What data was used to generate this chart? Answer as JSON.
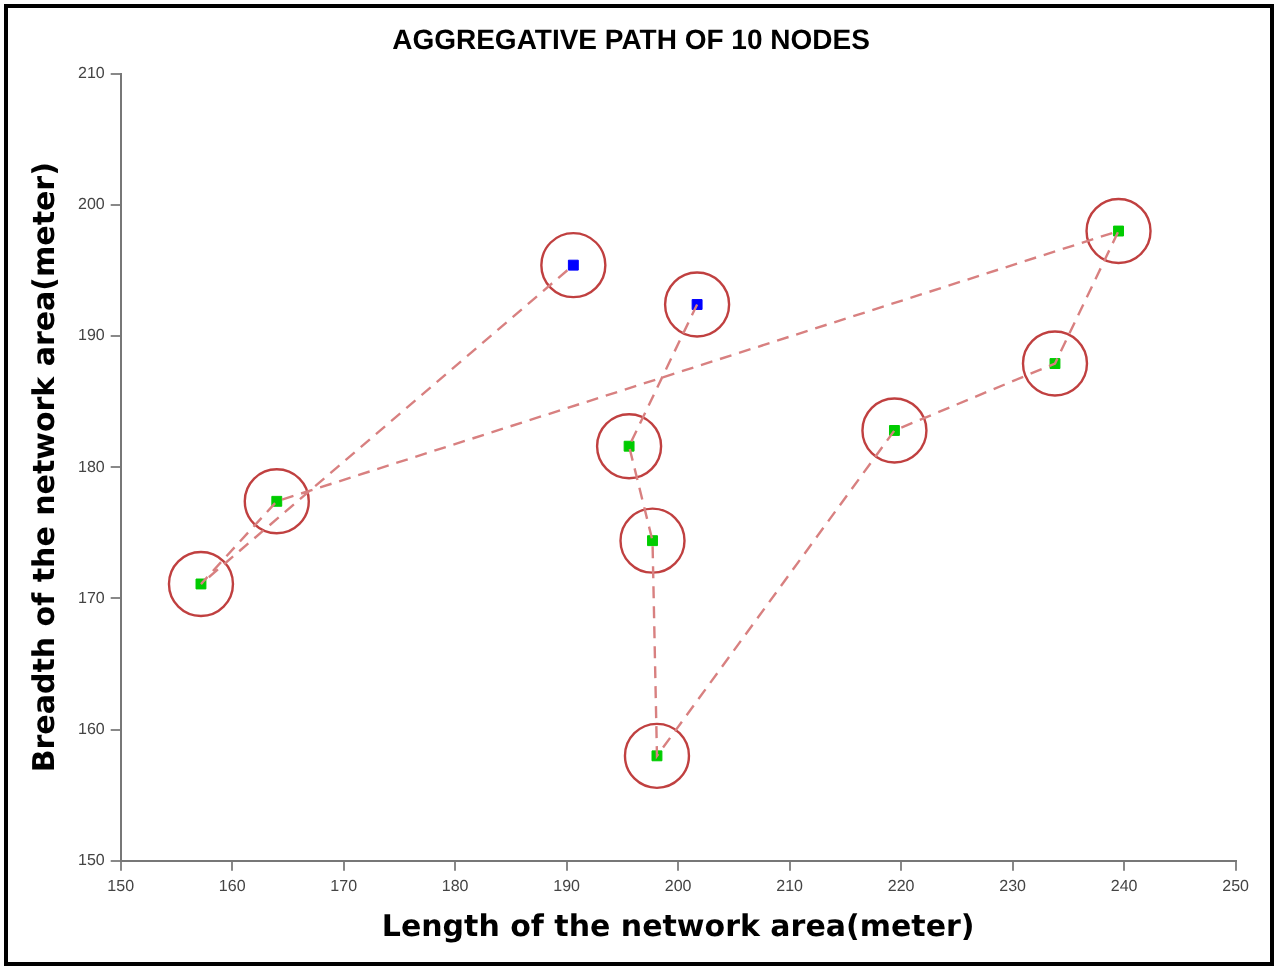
{
  "chart_data": {
    "type": "scatter",
    "title": "AGGREGATIVE PATH OF 10 NODES",
    "xlabel": "Length of the network area(meter)",
    "ylabel": "Breadth of the network area(meter)",
    "xlim": [
      150,
      250
    ],
    "xticks": [
      150,
      160,
      170,
      180,
      190,
      200,
      210,
      220,
      230,
      240,
      250
    ],
    "ylim": [
      150,
      210
    ],
    "yticks": [
      150,
      160,
      170,
      180,
      190,
      200,
      210
    ],
    "grid": false,
    "legend": false,
    "series": [
      {
        "type": "line",
        "color": "#d88080",
        "line_style": "dashed",
        "marker": "none",
        "x": [
          201.7,
          195.6,
          197.7,
          198.1,
          219.4,
          233.8,
          239.5,
          164.0,
          157.2,
          190.6
        ],
        "values": [
          192.4,
          181.6,
          174.4,
          158.0,
          182.8,
          187.9,
          198.0,
          177.4,
          171.1,
          195.4
        ]
      },
      {
        "type": "scatter",
        "color": "#c04040",
        "marker": "circle",
        "x": [
          201.7,
          195.6,
          197.7,
          198.1,
          219.4,
          233.8,
          239.5,
          164.0,
          157.2,
          190.6
        ],
        "values": [
          192.4,
          181.6,
          174.4,
          158.0,
          182.8,
          187.9,
          198.0,
          177.4,
          171.1,
          195.4
        ]
      },
      {
        "type": "scatter",
        "marker": "square",
        "colors": [
          "#0000ff",
          "#00cc00",
          "#00cc00",
          "#00cc00",
          "#00cc00",
          "#00cc00",
          "#00cc00",
          "#00cc00",
          "#00cc00",
          "#0000ff"
        ],
        "x": [
          201.7,
          195.6,
          197.7,
          198.1,
          219.4,
          233.8,
          239.5,
          164.0,
          157.2,
          190.6
        ],
        "values": [
          192.4,
          181.6,
          174.4,
          158.0,
          182.8,
          187.9,
          198.0,
          177.4,
          171.1,
          195.4
        ]
      }
    ]
  }
}
